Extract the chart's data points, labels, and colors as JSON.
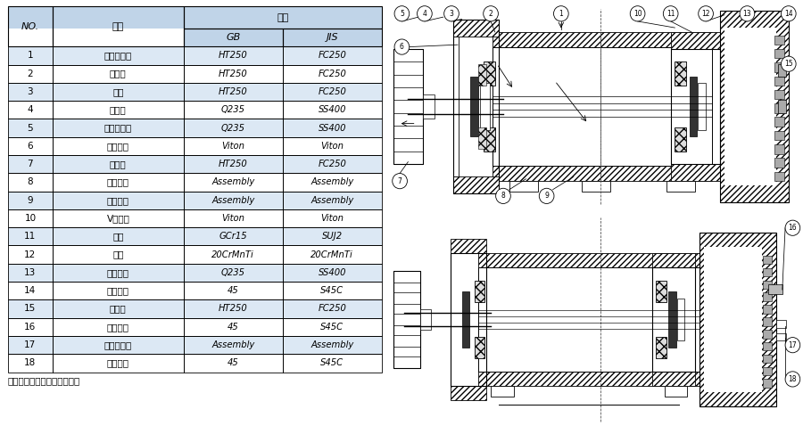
{
  "rows": [
    [
      "1",
      "鼓风机本体",
      "HT250",
      "FC250"
    ],
    [
      "2",
      "轴承坐",
      "HT250",
      "FC250"
    ],
    [
      "3",
      "油笱",
      "HT250",
      "FC250"
    ],
    [
      "4",
      "甯油片",
      "Q235",
      "SS400"
    ],
    [
      "5",
      "轴承固定片",
      "Q235",
      "SS400"
    ],
    [
      "6",
      "骨架油封",
      "Viton",
      "Viton"
    ],
    [
      "7",
      "皮带轮",
      "HT250",
      "FC250"
    ],
    [
      "8",
      "主动叶轮",
      "Assembly",
      "Assembly"
    ],
    [
      "9",
      "被动叶轮",
      "Assembly",
      "Assembly"
    ],
    [
      "10",
      "V型油封",
      "Viton",
      "Viton"
    ],
    [
      "11",
      "轴承",
      "GCr15",
      "SUJ2"
    ],
    [
      "12",
      "齿轮",
      "20CrMnTi",
      "20CrMnTi"
    ],
    [
      "13",
      "止动垫圈",
      "Q235",
      "SS400"
    ],
    [
      "14",
      "止动螺母",
      "45",
      "S45C"
    ],
    [
      "15",
      "齿轮笱",
      "HT250",
      "FC250"
    ],
    [
      "16",
      "加油栓塑",
      "45",
      "S45C"
    ],
    [
      "17",
      "润滑油面计",
      "Assembly",
      "Assembly"
    ],
    [
      "18",
      "泄油栓塑",
      "45",
      "S45C"
    ]
  ],
  "note": "注：不同机型结构略有不同。",
  "header_no": "NO.",
  "header_name": "名称",
  "header_mat": "材质",
  "header_gb": "GB",
  "header_jis": "JIS",
  "bg_header": "#c0d4e8",
  "bg_row_alt": "#dce8f4",
  "bg_row_normal": "#ffffff"
}
